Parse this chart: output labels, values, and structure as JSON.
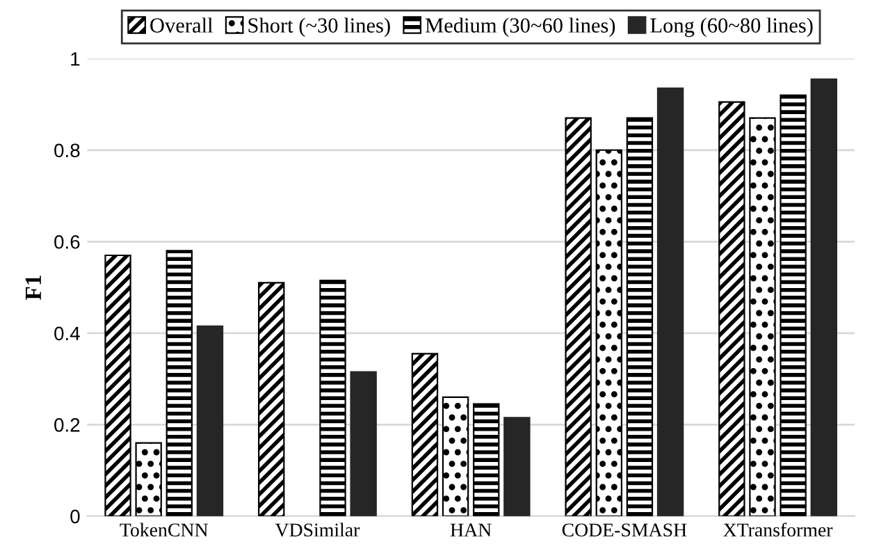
{
  "chart_data": {
    "type": "bar",
    "ylabel": "F1",
    "categories": [
      "TokenCNN",
      "VDSimilar",
      "HAN",
      "CODE-SMASH",
      "XTransformer"
    ],
    "series": [
      {
        "name": "Overall",
        "color": "#000000",
        "values": [
          0.57,
          0.51,
          0.355,
          0.87,
          0.905
        ]
      },
      {
        "name": "Short (~30 lines)",
        "color": "#000000",
        "values": [
          0.16,
          null,
          0.26,
          0.8,
          0.87
        ]
      },
      {
        "name": "Medium (30~60 lines)",
        "color": "#000000",
        "values": [
          0.58,
          0.515,
          0.245,
          0.87,
          0.92
        ]
      },
      {
        "name": "Long (60~80 lines)",
        "color": "#262626",
        "values": [
          0.415,
          0.315,
          0.215,
          0.935,
          0.955
        ]
      }
    ],
    "ylim": [
      0,
      1
    ],
    "yticks": [
      0,
      0.2,
      0.4,
      0.6,
      0.8,
      1
    ],
    "grid": "y",
    "legend": "top"
  }
}
